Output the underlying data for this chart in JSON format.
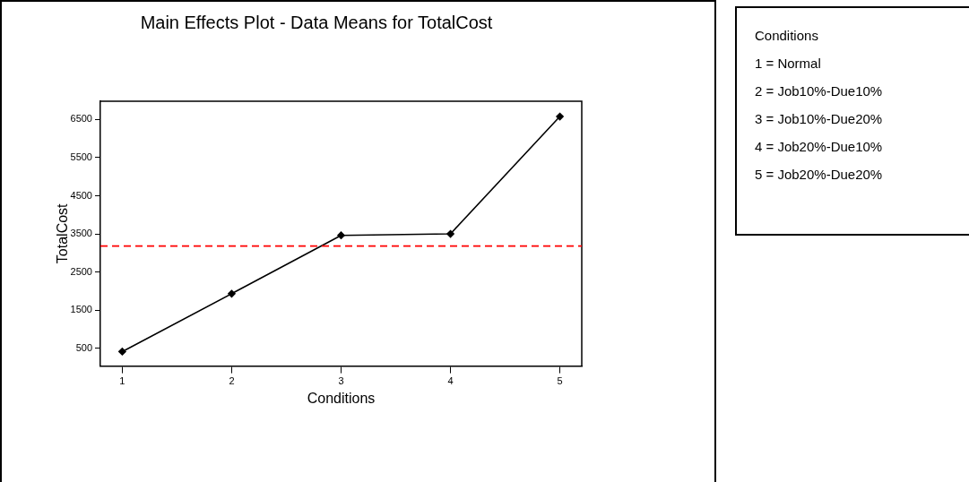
{
  "chart_data": {
    "type": "line",
    "title": "Main Effects Plot - Data Means for TotalCost",
    "xlabel": "Conditions",
    "ylabel": "TotalCost",
    "x": [
      1,
      2,
      3,
      4,
      5
    ],
    "series": [
      {
        "color": "#000000",
        "values": [
          410,
          1930,
          3460,
          3500,
          6580
        ]
      }
    ],
    "xlim": [
      0.8,
      5.2
    ],
    "xticks": [
      1,
      2,
      3,
      4,
      5
    ],
    "ylim": [
      30,
      6980
    ],
    "yticks": [
      500,
      1500,
      2500,
      3500,
      4500,
      5500,
      6500
    ],
    "ref_lines": [
      {
        "axis": "y",
        "value": 3180,
        "color": "#ff0000",
        "line_style": "dashed"
      }
    ],
    "marker": "diamond",
    "line_style": "solid",
    "grid": false,
    "legend": false,
    "annotations": [
      "Conditions",
      "1 = Normal",
      "2 = Job10%-Due10%",
      "3 = Job10%-Due20%",
      "4 = Job20%-Due10%",
      "5 = Job20%-Due20%"
    ]
  }
}
